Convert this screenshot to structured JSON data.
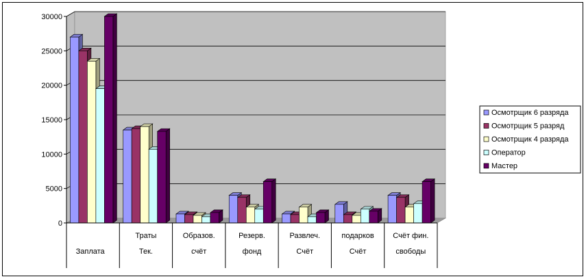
{
  "chart_data": {
    "type": "bar",
    "categories": [
      [
        "Заплата"
      ],
      [
        "Траты",
        "Тек."
      ],
      [
        "Образов.",
        "счёт"
      ],
      [
        "Резерв.",
        "фонд"
      ],
      [
        "Развлеч.",
        "Счёт"
      ],
      [
        "подарков",
        "Счёт"
      ],
      [
        "Счёт фин.",
        "свободы"
      ]
    ],
    "series": [
      {
        "name": "Осмотрщик 6 разряда",
        "color": "#9999ff",
        "values": [
          27000,
          13500,
          1300,
          4000,
          1300,
          2700,
          4000
        ]
      },
      {
        "name": "Осмотрщик 5 разряд",
        "color": "#993366",
        "values": [
          25000,
          13700,
          1200,
          3700,
          1200,
          1200,
          3700
        ]
      },
      {
        "name": "Осмотрщик 4 разряда",
        "color": "#ffffcc",
        "values": [
          23500,
          14000,
          1100,
          2300,
          2300,
          1100,
          2300
        ]
      },
      {
        "name": "Оператор",
        "color": "#ccffff",
        "values": [
          19500,
          10700,
          900,
          2000,
          900,
          2000,
          2800
        ]
      },
      {
        "name": "Мастер",
        "color": "#660066",
        "values": [
          30000,
          13300,
          1500,
          6000,
          1500,
          1700,
          6000
        ]
      }
    ],
    "ylim": [
      0,
      30000
    ],
    "yticks": [
      "0",
      "5000",
      "10000",
      "15000",
      "20000",
      "25000",
      "30000"
    ],
    "legend_position": "right",
    "grid": true,
    "style": "3d-clustered-column"
  }
}
